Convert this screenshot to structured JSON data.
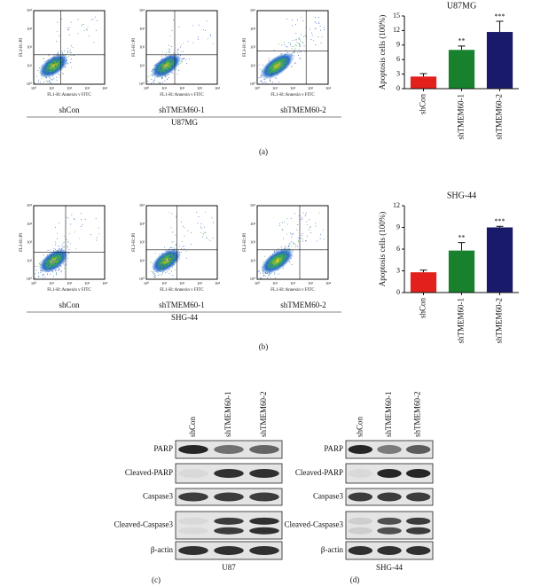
{
  "chart_data": [
    {
      "type": "bar",
      "title": "U87MG",
      "y_label": "Apoptosis cells (100%)",
      "categories": [
        "shCon",
        "shTMEM60-1",
        "shTMEM60-2"
      ],
      "values": [
        2.5,
        8.0,
        11.7
      ],
      "errors": [
        0.6,
        0.8,
        2.2
      ],
      "annotations": [
        null,
        "**",
        "***"
      ],
      "colors": [
        "#e3201c",
        "#17812d",
        "#1a1a6b"
      ],
      "ylim": [
        0,
        15
      ],
      "yticks": [
        0,
        3,
        6,
        9,
        12,
        15
      ]
    },
    {
      "type": "bar",
      "title": "SHG-44",
      "y_label": "Apoptosis cells (100%)",
      "categories": [
        "shCon",
        "shTMEM60-1",
        "shTMEM60-2"
      ],
      "values": [
        2.8,
        5.8,
        9.0
      ],
      "errors": [
        0.3,
        1.1,
        0.15
      ],
      "annotations": [
        null,
        "**",
        "***"
      ],
      "colors": [
        "#e3201c",
        "#17812d",
        "#1a1a6b"
      ],
      "ylim": [
        0,
        12
      ],
      "yticks": [
        0,
        3,
        6,
        9,
        12
      ]
    }
  ],
  "flow": {
    "x_label": "FL1-H::Annexin v FITC",
    "y_label": "FL3-H::PI",
    "ticks": [
      "10⁰",
      "10¹",
      "10²",
      "10³",
      "10⁴"
    ],
    "rows": [
      {
        "samples": [
          "shCon",
          "shTMEM60-1",
          "shTMEM60-2"
        ],
        "cell_line": "U87MG",
        "panel": "(a)"
      },
      {
        "samples": [
          "shCon",
          "shTMEM60-1",
          "shTMEM60-2"
        ],
        "cell_line": "SHG-44",
        "panel": "(b)"
      }
    ]
  },
  "blots": [
    {
      "columns": [
        "shCon",
        "shTMEM60-1",
        "shTMEM60-2"
      ],
      "rows": [
        "PARP",
        "Cleaved-PARP",
        "Caspase3",
        "Cleaved-Caspase3",
        "β-actin"
      ],
      "cell_line": "U87",
      "panel": "(c)"
    },
    {
      "columns": [
        "shCon",
        "shTMEM60-1",
        "shTMEM60-2"
      ],
      "rows": [
        "PARP",
        "Cleaved-PARP",
        "Caspase3",
        "Cleaved-Caspase3",
        "β-actin"
      ],
      "cell_line": "SHG-44",
      "panel": "(d)"
    }
  ]
}
